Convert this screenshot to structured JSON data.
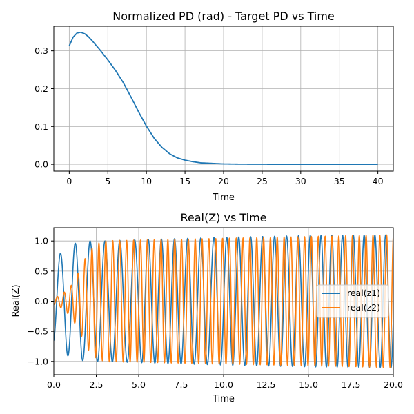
{
  "chart_data": [
    {
      "type": "line",
      "title": "Normalized PD (rad) - Target PD vs Time",
      "xlabel": "Time",
      "ylabel": "",
      "xlim": [
        -2,
        42
      ],
      "ylim": [
        -0.018,
        0.365
      ],
      "grid": true,
      "xticks": [
        0,
        5,
        10,
        15,
        20,
        25,
        30,
        35,
        40
      ],
      "yticks": [
        0.0,
        0.1,
        0.2,
        0.3
      ],
      "ytick_labels": [
        "0.0",
        "0.1",
        "0.2",
        "0.3"
      ],
      "series": [
        {
          "color": "#1f77b4",
          "x": [
            0,
            0.5,
            1,
            1.5,
            2,
            2.5,
            3,
            4,
            5,
            6,
            7,
            8,
            9,
            10,
            11,
            12,
            13,
            14,
            15,
            16,
            17,
            18,
            19,
            20,
            22,
            25,
            30,
            35,
            40
          ],
          "y": [
            0.313,
            0.336,
            0.347,
            0.349,
            0.345,
            0.337,
            0.326,
            0.302,
            0.276,
            0.248,
            0.216,
            0.178,
            0.138,
            0.101,
            0.069,
            0.045,
            0.028,
            0.017,
            0.011,
            0.007,
            0.004,
            0.003,
            0.002,
            0.001,
            0.0005,
            0.0002,
            0.0,
            0.0,
            0.0
          ]
        }
      ]
    },
    {
      "type": "line",
      "title": "Real(Z) vs Time",
      "xlabel": "Time",
      "ylabel": "Real(Z)",
      "xlim": [
        0,
        20
      ],
      "ylim": [
        -1.22,
        1.22
      ],
      "grid": true,
      "xticks": [
        0.0,
        2.5,
        5.0,
        7.5,
        10.0,
        12.5,
        15.0,
        17.5,
        20.0
      ],
      "xtick_labels": [
        "0.0",
        "2.5",
        "5.0",
        "7.5",
        "10.0",
        "12.5",
        "15.0",
        "17.5",
        "20.0"
      ],
      "yticks": [
        -1.0,
        -0.5,
        0.0,
        0.5,
        1.0
      ],
      "ytick_labels": [
        "−1.0",
        "−0.5",
        "0.0",
        "0.5",
        "1.0"
      ],
      "legend_position": "center-right",
      "series": [
        {
          "name": "real(z1)",
          "color": "#1f77b4",
          "model": "amplitude envelope and phase as functions of time",
          "envelope_t": [
            0,
            1,
            2,
            3,
            5,
            10,
            15,
            20
          ],
          "envelope_a": [
            0.7,
            0.95,
            1.0,
            1.0,
            1.02,
            1.06,
            1.09,
            1.1
          ],
          "phase_t": [
            0,
            5,
            10,
            15,
            20
          ],
          "phase_rad": [
            3.5,
            39.4,
            80.0,
            124.6,
            174.1
          ]
        },
        {
          "name": "real(z2)",
          "color": "#ff7f0e",
          "model": "amplitude envelope and phase as functions of time",
          "envelope_t": [
            0,
            0.5,
            1,
            1.5,
            2,
            2.5,
            3,
            20
          ],
          "envelope_a": [
            0.05,
            0.12,
            0.25,
            0.5,
            0.8,
            0.95,
            1.0,
            1.1
          ],
          "phase_t": [
            0,
            5,
            10,
            15,
            20
          ],
          "phase_rad": [
            3.14,
            80.0,
            158.0,
            236.0,
            314.0
          ]
        }
      ]
    }
  ]
}
